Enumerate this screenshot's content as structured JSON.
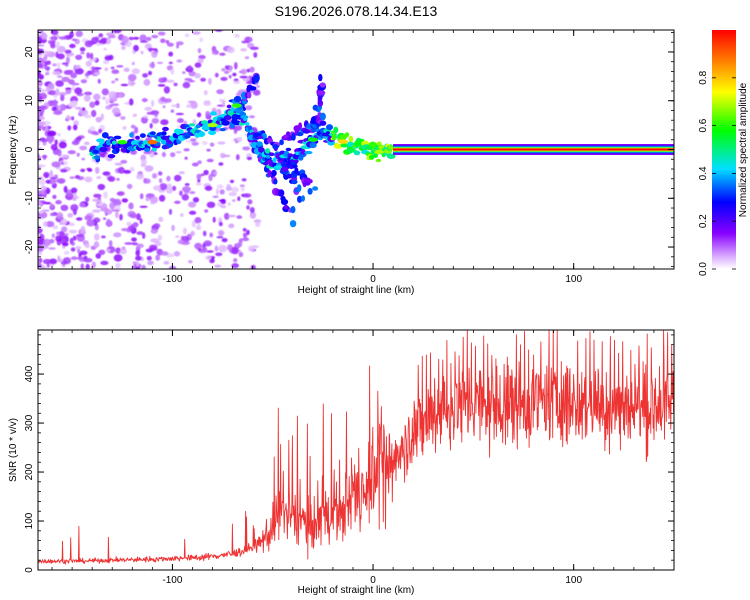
{
  "title": "S196.2026.078.14.34.E13",
  "chart_data": [
    {
      "type": "heatmap",
      "xlabel": "Height of straight line (km)",
      "ylabel": "Frequency (Hz)",
      "xlim": [
        -167,
        150
      ],
      "ylim": [
        -24.5,
        24.5
      ],
      "xticks": [
        -100,
        0,
        100
      ],
      "xtick_labels": [
        "-100",
        "0",
        "100"
      ],
      "yticks": [
        -20,
        -10,
        0,
        10,
        20
      ],
      "ytick_labels": [
        "-20",
        "-10",
        "0",
        "10",
        "20"
      ],
      "colorbar": {
        "label": "Normalized spectral amplitude",
        "range": [
          0,
          1
        ],
        "ticks": [
          0.0,
          0.2,
          0.4,
          0.6,
          0.8
        ],
        "tick_labels": [
          "0.0",
          "0.2",
          "0.4",
          "0.6",
          "0.8"
        ]
      },
      "ridge": [
        {
          "x": -140,
          "y": 0.0
        },
        {
          "x": -125,
          "y": 1.5
        },
        {
          "x": -110,
          "y": 1.5
        },
        {
          "x": -95,
          "y": 3.0
        },
        {
          "x": -80,
          "y": 5.0
        },
        {
          "x": -68,
          "y": 9.0
        },
        {
          "x": -62,
          "y": 4.0
        },
        {
          "x": -50,
          "y": -3.0
        },
        {
          "x": -40,
          "y": -2.0
        },
        {
          "x": -30,
          "y": 2.0
        },
        {
          "x": -20,
          "y": 3.5
        },
        {
          "x": -12,
          "y": 0.5
        },
        {
          "x": -5,
          "y": 0.5
        },
        {
          "x": 0,
          "y": -0.5
        },
        {
          "x": 5,
          "y": -0.5
        },
        {
          "x": 10,
          "y": 0.0
        },
        {
          "x": 150,
          "y": 0.0
        }
      ]
    },
    {
      "type": "line",
      "xlabel": "Height of straight line (km)",
      "ylabel": "SNR (10 * v/v)",
      "xlim": [
        -167,
        150
      ],
      "ylim": [
        0,
        490
      ],
      "xticks": [
        -100,
        0,
        100
      ],
      "xtick_labels": [
        "-100",
        "0",
        "100"
      ],
      "yticks": [
        0,
        100,
        200,
        300,
        400
      ],
      "ytick_labels": [
        "0",
        "100",
        "200",
        "300",
        "400"
      ],
      "color": "#ee3333",
      "series": [
        {
          "name": "SNR",
          "x": [
            -167,
            -150,
            -130,
            -110,
            -90,
            -80,
            -70,
            -60,
            -55,
            -50,
            -45,
            -40,
            -35,
            -30,
            -25,
            -20,
            -15,
            -10,
            -5,
            0,
            5,
            10,
            15,
            20,
            25,
            30,
            35,
            40,
            50,
            60,
            70,
            80,
            90,
            100,
            110,
            120,
            130,
            140,
            150
          ],
          "values": [
            18,
            18,
            20,
            22,
            25,
            28,
            33,
            45,
            60,
            85,
            120,
            110,
            100,
            90,
            110,
            115,
            105,
            140,
            170,
            195,
            195,
            230,
            260,
            275,
            300,
            315,
            325,
            330,
            340,
            330,
            330,
            335,
            340,
            330,
            330,
            325,
            325,
            330,
            335
          ]
        }
      ]
    }
  ]
}
